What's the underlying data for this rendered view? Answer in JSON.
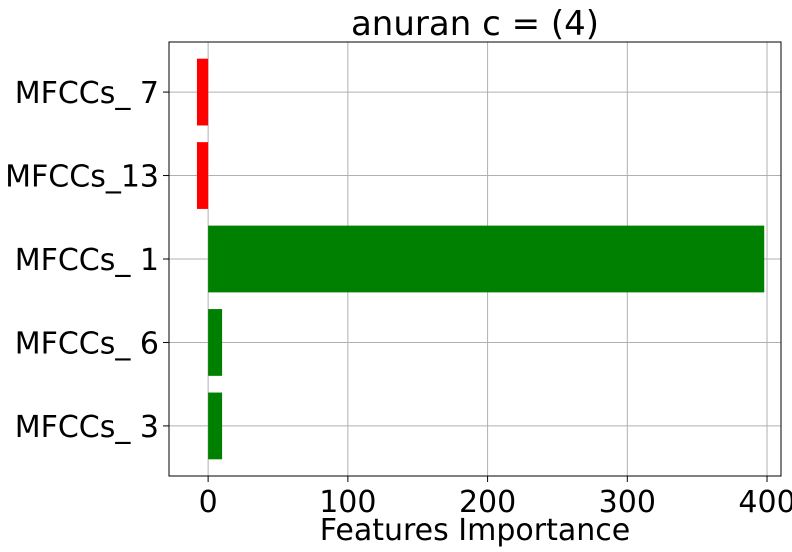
{
  "chart_data": {
    "type": "bar",
    "orientation": "horizontal",
    "title": "anuran c = (4)",
    "xlabel": "Features Importance",
    "ylabel": "",
    "categories": [
      "MFCCs_ 3",
      "MFCCs_ 6",
      "MFCCs_ 1",
      "MFCCs_13",
      "MFCCs_ 7"
    ],
    "values": [
      10,
      10,
      398,
      -8,
      -8
    ],
    "bar_colors": [
      "#008000",
      "#008000",
      "#008000",
      "#ff0000",
      "#ff0000"
    ],
    "xlim": [
      -28,
      410
    ],
    "x_ticks": [
      0,
      100,
      200,
      300,
      400
    ],
    "x_tick_labels": [
      "0",
      "100",
      "200",
      "300",
      "400"
    ],
    "grid": true
  }
}
